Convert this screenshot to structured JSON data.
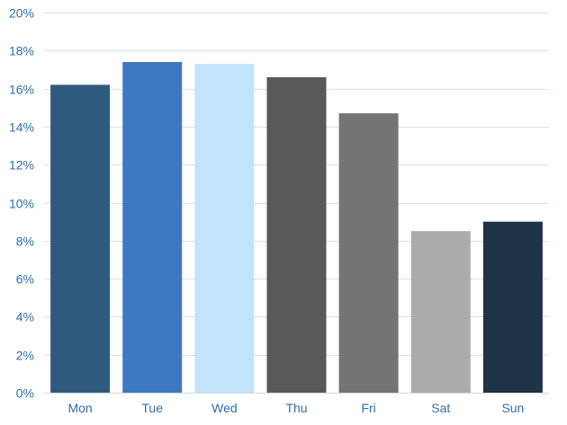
{
  "chart_data": {
    "type": "bar",
    "categories": [
      "Mon",
      "Tue",
      "Wed",
      "Thu",
      "Fri",
      "Sat",
      "Sun"
    ],
    "values": [
      16.2,
      17.4,
      17.3,
      16.6,
      14.7,
      8.5,
      9.0
    ],
    "value_unit": "%",
    "ylim": [
      0,
      20
    ],
    "y_ticks": [
      0,
      2,
      4,
      6,
      8,
      10,
      12,
      14,
      16,
      18,
      20
    ],
    "y_tick_labels": [
      "0%",
      "2%",
      "4%",
      "6%",
      "8%",
      "10%",
      "12%",
      "14%",
      "16%",
      "18%",
      "20%"
    ],
    "bar_colors": [
      "#2f5a7d",
      "#3f78c2",
      "#c2e4fb",
      "#595959",
      "#747474",
      "#ababab",
      "#1d3448"
    ],
    "grid": true,
    "legend": false,
    "title": "",
    "xlabel": "",
    "ylabel": ""
  }
}
